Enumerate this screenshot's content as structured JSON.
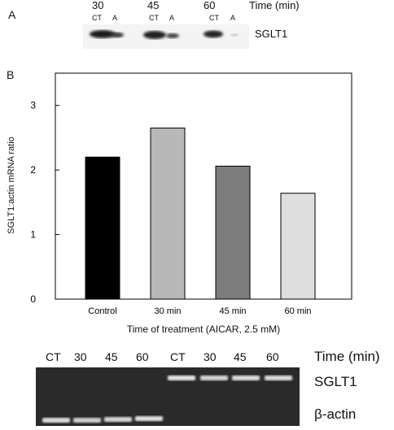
{
  "panel_a": {
    "letter": "A",
    "time_labels": [
      "30",
      "45",
      "60"
    ],
    "time_header": "Time (min)",
    "lane_labels": [
      "CT",
      "A",
      "CT",
      "A",
      "CT",
      "A"
    ],
    "band_label": "SGLT1"
  },
  "panel_b": {
    "letter": "B"
  },
  "chart_data": {
    "type": "bar",
    "categories": [
      "Control",
      "30 min",
      "45 min",
      "60 min"
    ],
    "values": [
      2.2,
      2.65,
      2.06,
      1.64
    ],
    "colors": [
      "#000000",
      "#b8b8b8",
      "#7c7c7c",
      "#dedede"
    ],
    "xlabel": "Time of treatment (AICAR, 2.5 mM)",
    "ylabel": "SGLT1:actin mRNA ratio",
    "ylim": [
      0,
      3.5
    ],
    "yticks": [
      "0",
      "1",
      "2",
      "3"
    ],
    "grid": false
  },
  "gel": {
    "lane_labels": [
      "CT",
      "30",
      "45",
      "60",
      "CT",
      "30",
      "45",
      "60"
    ],
    "time_header": "Time (min)",
    "sglt1_label": "SGLT1",
    "actin_label": "β-actin"
  }
}
